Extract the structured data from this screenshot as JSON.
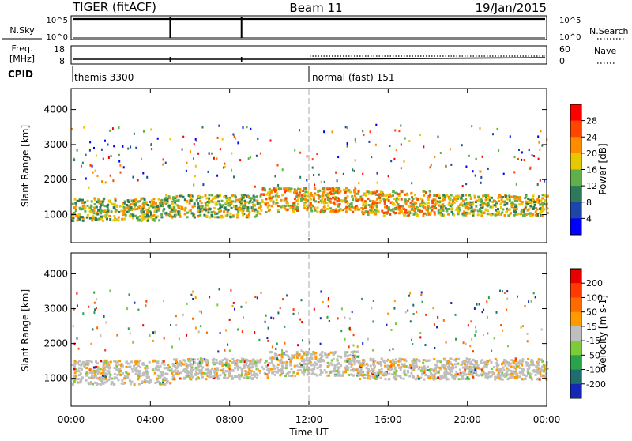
{
  "header": {
    "title": "TIGER (fitACF)",
    "beam": "Beam 11",
    "date": "19/Jan/2015"
  },
  "nsky_panel": {
    "label": "N.Sky",
    "left_ticks": [
      "10^5",
      "10^0"
    ],
    "right_ticks": [
      "10^5",
      "10^0"
    ],
    "right_label": "N.Search",
    "spike_times_h": [
      5.0,
      8.6
    ]
  },
  "freq_panel": {
    "label_line1": "Freq.",
    "label_line2": "[MHz]",
    "left_ticks": [
      "18",
      "8"
    ],
    "right_ticks": [
      "60",
      "0"
    ],
    "right_label": "Nave",
    "spike_times_h": [
      5.0,
      8.6
    ]
  },
  "cpid": {
    "label": "CPID",
    "modes": [
      {
        "name": "themis 3300",
        "start_h": 0
      },
      {
        "name": "normal (fast) 151",
        "start_h": 12.0
      }
    ]
  },
  "time_axis": {
    "title": "Time UT",
    "xlim_h": [
      0,
      24
    ],
    "ticks": [
      "00:00",
      "04:00",
      "08:00",
      "12:00",
      "16:00",
      "20:00",
      "00:00"
    ],
    "tick_hours": [
      0,
      4,
      8,
      12,
      16,
      20,
      24
    ]
  },
  "chart_data": [
    {
      "type": "heatmap",
      "name": "power",
      "ylabel": "Slant Range [km]",
      "ylim": [
        200,
        4600
      ],
      "yticks": [
        "1000",
        "2000",
        "3000",
        "4000"
      ],
      "ytick_values": [
        1000,
        2000,
        3000,
        4000
      ],
      "colorbar": {
        "label": "Power [dB]",
        "ticks": [
          "28",
          "24",
          "20",
          "16",
          "12",
          "8",
          "4"
        ],
        "colors": [
          "#0000ff",
          "#1e46aa",
          "#2d7a5a",
          "#5fb04a",
          "#e6c800",
          "#ff8c00",
          "#ff4500",
          "#ff0000"
        ]
      },
      "bands": [
        {
          "t0": 0.0,
          "t1": 4.5,
          "r0": 850,
          "r1": 1500,
          "level": "mid"
        },
        {
          "t0": 4.5,
          "t1": 9.5,
          "r0": 950,
          "r1": 1600,
          "level": "mid"
        },
        {
          "t0": 9.5,
          "t1": 14.5,
          "r0": 1100,
          "r1": 1800,
          "level": "high"
        },
        {
          "t0": 14.5,
          "t1": 18.5,
          "r0": 1000,
          "r1": 1700,
          "level": "high"
        },
        {
          "t0": 18.5,
          "t1": 24.0,
          "r0": 1000,
          "r1": 1600,
          "level": "mid"
        }
      ]
    },
    {
      "type": "heatmap",
      "name": "velocity",
      "ylabel": "Slant Range [km]",
      "ylim": [
        200,
        4600
      ],
      "yticks": [
        "1000",
        "2000",
        "3000",
        "4000"
      ],
      "ytick_values": [
        1000,
        2000,
        3000,
        4000
      ],
      "colorbar": {
        "label": "Velocity [m s-1]",
        "ticks": [
          "200",
          "100",
          "50",
          "15",
          "-15",
          "-50",
          "-100",
          "-200"
        ],
        "colors": [
          "#1428b4",
          "#1e6e6e",
          "#2aa24a",
          "#7ccc3a",
          "#bebebe",
          "#ff9a00",
          "#ff6a00",
          "#ff3a00",
          "#e60000"
        ]
      },
      "bands": [
        {
          "t0": 0.0,
          "t1": 5.0,
          "r0": 850,
          "r1": 1550,
          "level": "gray"
        },
        {
          "t0": 5.0,
          "t1": 10.0,
          "r0": 1000,
          "r1": 1600,
          "level": "gray"
        },
        {
          "t0": 10.0,
          "t1": 14.5,
          "r0": 1100,
          "r1": 1800,
          "level": "gray"
        },
        {
          "t0": 14.5,
          "t1": 24.0,
          "r0": 1000,
          "r1": 1600,
          "level": "gray"
        }
      ]
    }
  ]
}
